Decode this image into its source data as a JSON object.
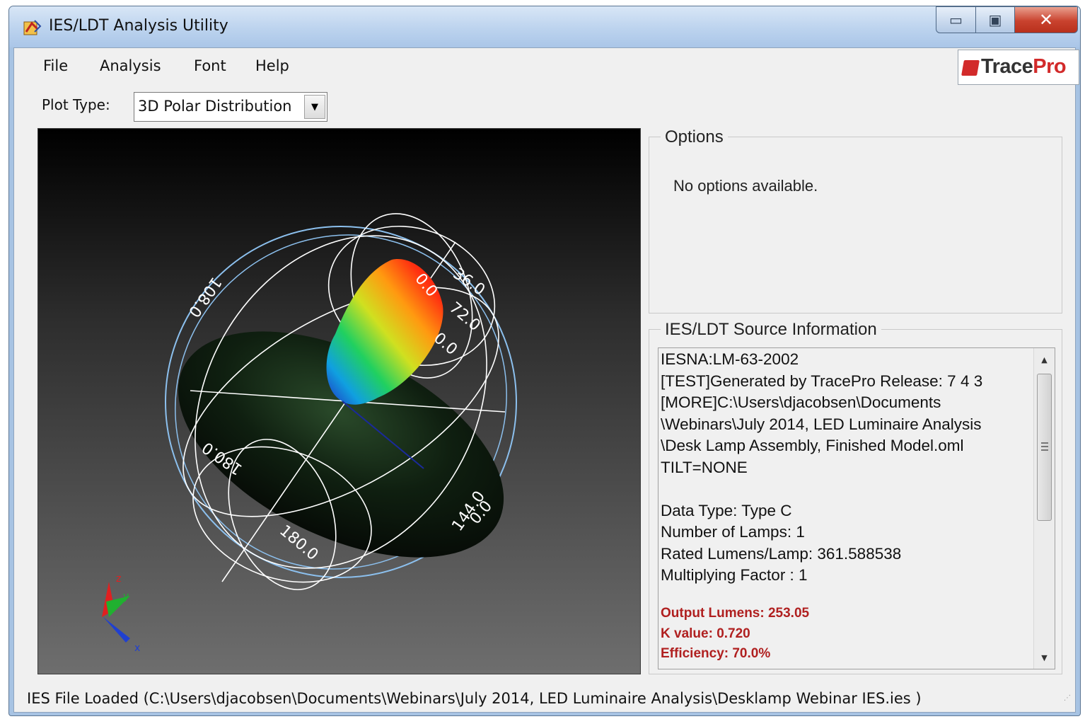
{
  "window": {
    "title": "IES/LDT Analysis Utility",
    "controls": {
      "minimize": "▭",
      "maximize": "▣",
      "close": "✕"
    }
  },
  "menu": {
    "items": [
      "File",
      "Analysis",
      "Font",
      "Help"
    ]
  },
  "brand": {
    "trace": "Trace",
    "pro": "Pro"
  },
  "toolbar": {
    "plot_type_label": "Plot Type:",
    "plot_type_value": "3D Polar Distribution"
  },
  "plot": {
    "angle_labels": [
      "36.0",
      "0.0",
      "72.0",
      "0.0",
      "108.0",
      "180.0",
      "0.0",
      "144.0",
      "180.0"
    ],
    "axis_labels": {
      "x": "x",
      "y": "y",
      "z": "z"
    }
  },
  "options": {
    "title": "Options",
    "message": "No options available."
  },
  "source_info": {
    "title": "IES/LDT Source Information",
    "lines": [
      "IESNA:LM-63-2002",
      "[TEST]Generated by TracePro Release: 7 4 3",
      "[MORE]C:\\Users\\djacobsen\\Documents",
      "\\Webinars\\July 2014, LED Luminaire Analysis",
      "\\Desk Lamp Assembly, Finished Model.oml",
      "TILT=NONE",
      "",
      "Data Type: Type C",
      "Number of Lamps: 1",
      "Rated Lumens/Lamp: 361.588538",
      "Multiplying Factor : 1"
    ],
    "highlights": [
      "Output Lumens: 253.05",
      "K value: 0.720",
      "Efficiency: 70.0%"
    ]
  },
  "status": {
    "text": "IES File Loaded (C:\\Users\\djacobsen\\Documents\\Webinars\\July 2014, LED Luminaire Analysis\\Desklamp Webinar IES.ies )"
  },
  "colors": {
    "highlight_text": "#b02020",
    "brand_red": "#d22a2a",
    "titlebar": "#bcd3ee"
  }
}
